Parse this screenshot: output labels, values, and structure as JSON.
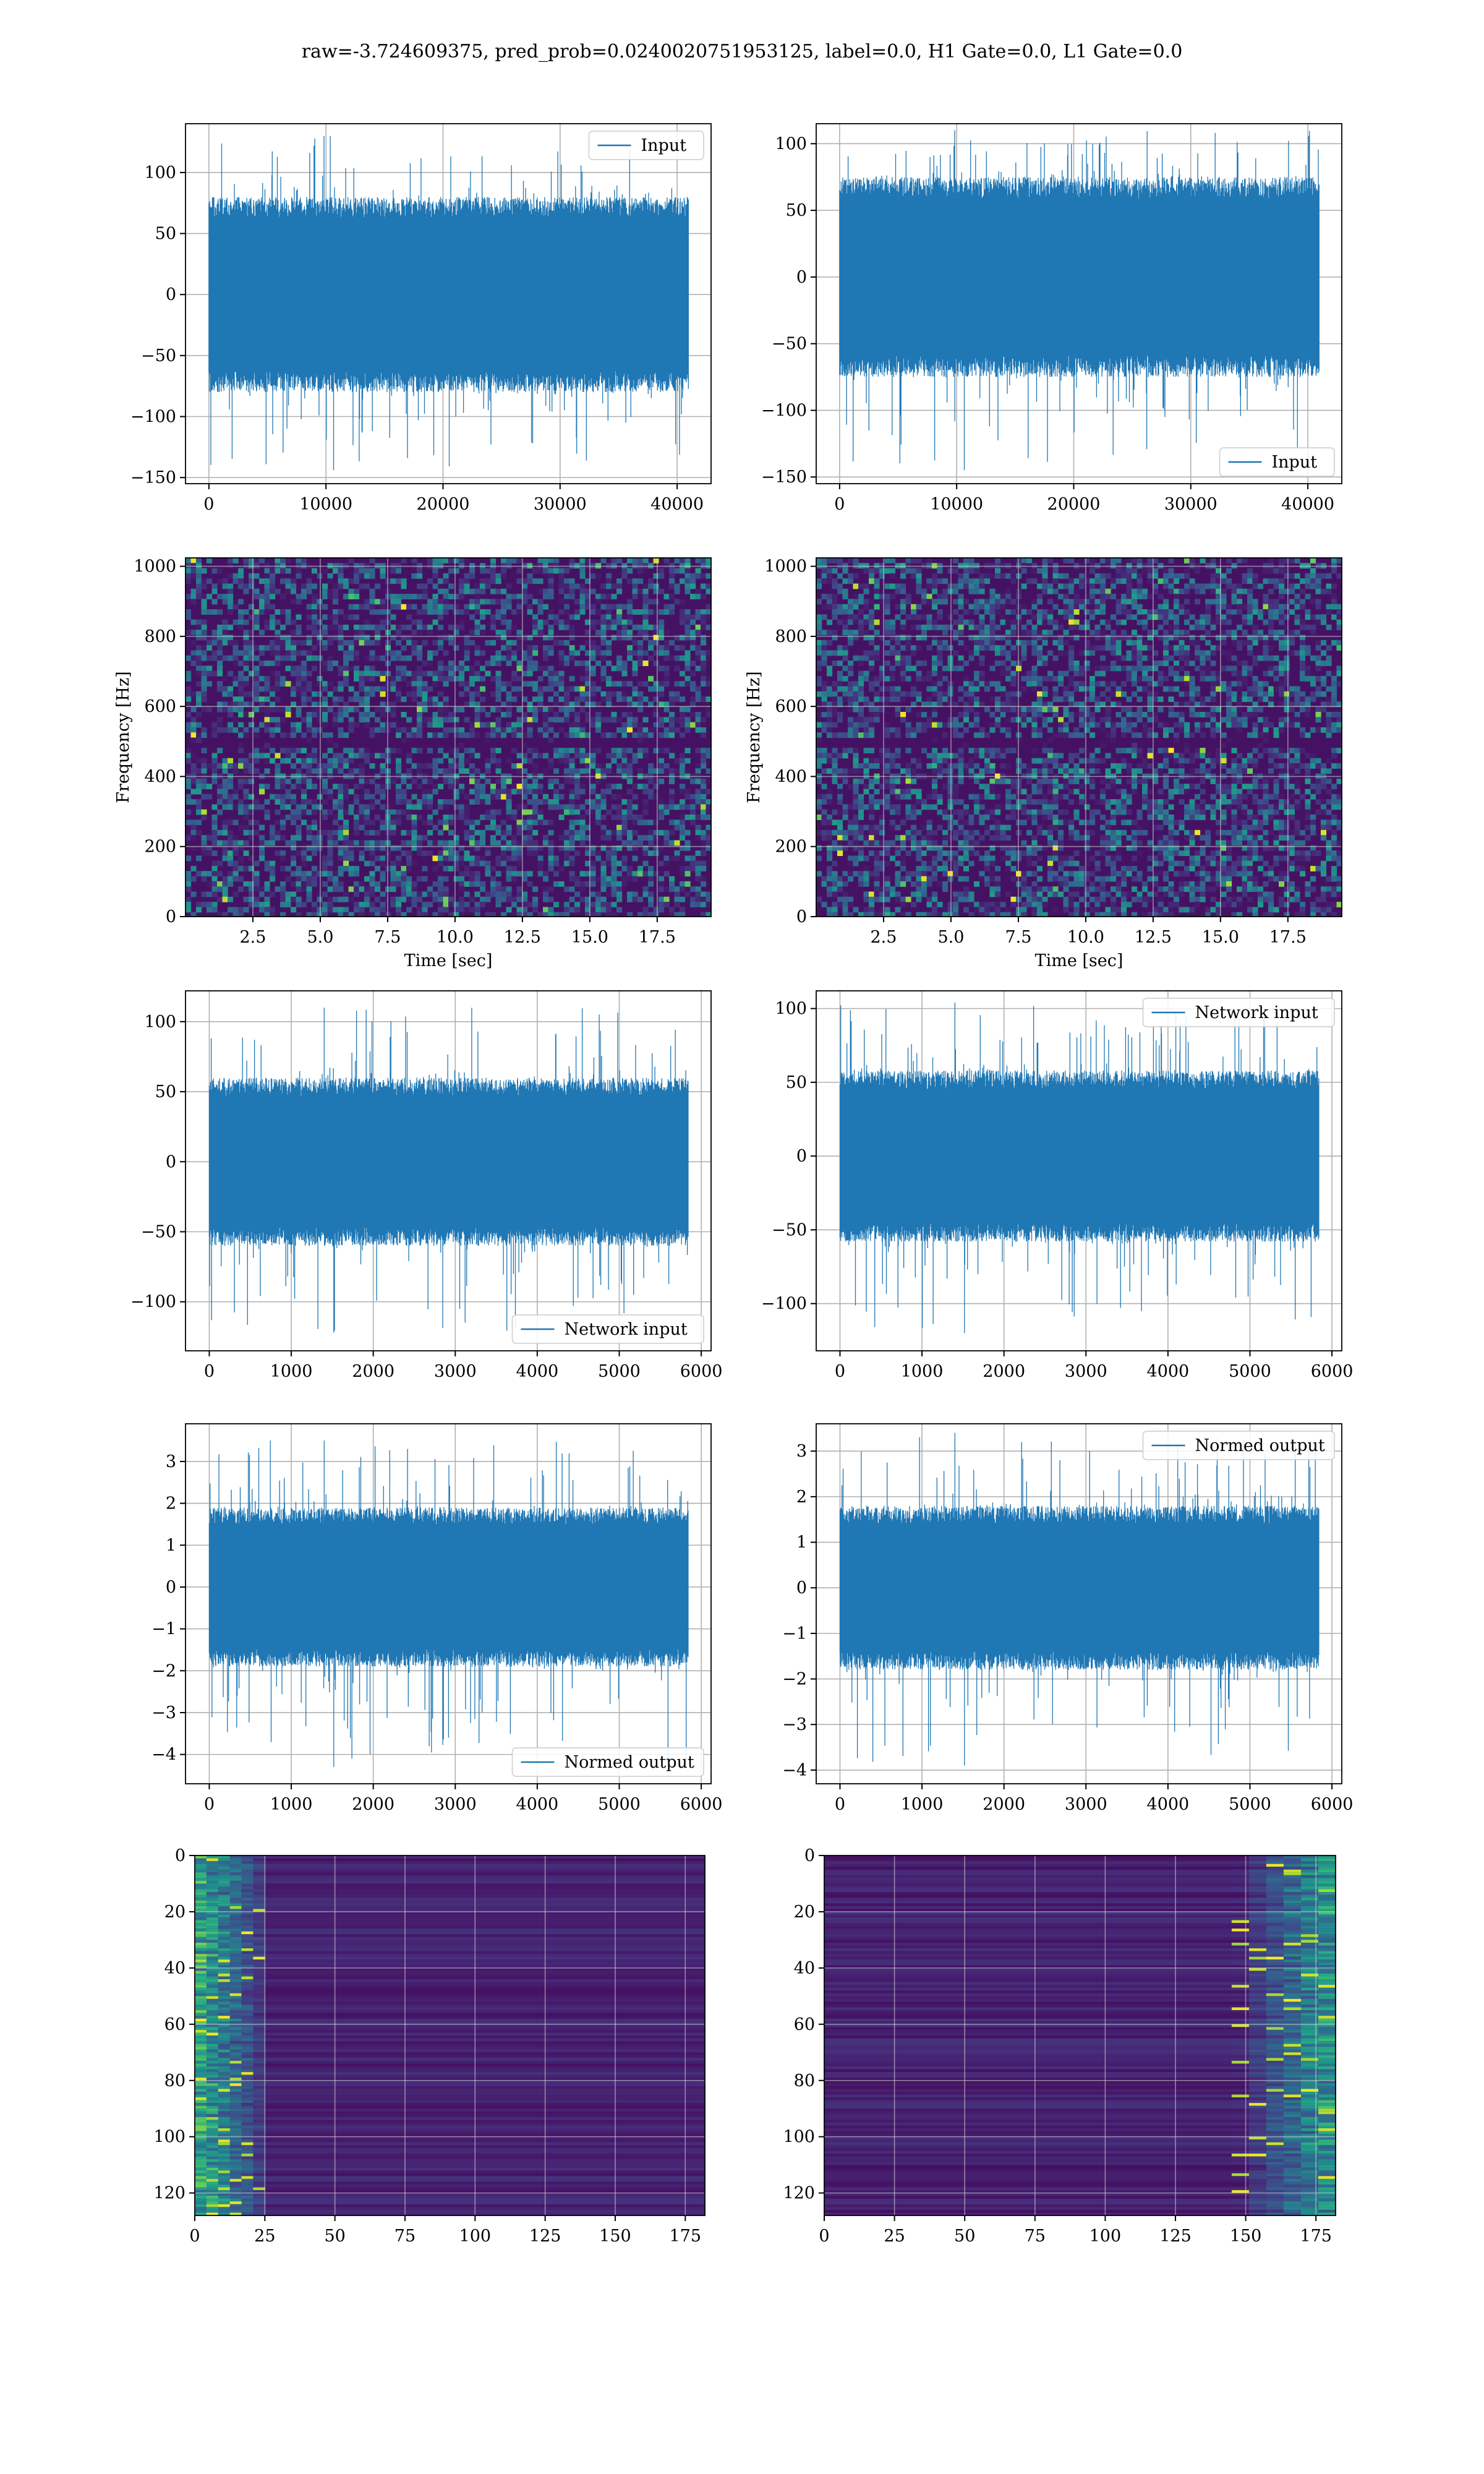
{
  "suptitle": "raw=-3.724609375, pred_prob=0.0240020751953125, label=0.0, H1 Gate=0.0, L1 Gate=0.0",
  "colors": {
    "line": "#1f77b4",
    "grid": "#b0b0b0"
  },
  "chart_data": [
    {
      "id": "ts-input-left",
      "type": "line",
      "legend": "Input",
      "legend_loc": "upper-right",
      "xlim": [
        -2000,
        42900
      ],
      "ylim": [
        -155,
        140
      ],
      "xticks": [
        0,
        10000,
        20000,
        30000,
        40000
      ],
      "xticklabels": [
        "0",
        "10000",
        "20000",
        "30000",
        "40000"
      ],
      "yticks": [
        -150,
        -100,
        -50,
        0,
        50,
        100
      ],
      "yticklabels": [
        "−150",
        "−100",
        "−50",
        "0",
        "50",
        "100"
      ],
      "n_samples": 40960,
      "x_range": [
        0,
        40960
      ],
      "envelope_lo": -80,
      "envelope_hi": 80,
      "min": -144,
      "max": 130
    },
    {
      "id": "ts-input-right",
      "type": "line",
      "legend": "Input",
      "legend_loc": "lower-right",
      "xlim": [
        -2000,
        42900
      ],
      "ylim": [
        -155,
        115
      ],
      "xticks": [
        0,
        10000,
        20000,
        30000,
        40000
      ],
      "xticklabels": [
        "0",
        "10000",
        "20000",
        "30000",
        "40000"
      ],
      "yticks": [
        -150,
        -100,
        -50,
        0,
        50,
        100
      ],
      "yticklabels": [
        "−150",
        "−100",
        "−50",
        "0",
        "50",
        "100"
      ],
      "n_samples": 40960,
      "x_range": [
        0,
        40960
      ],
      "envelope_lo": -75,
      "envelope_hi": 75,
      "min": -145,
      "max": 110
    },
    {
      "id": "spec-left",
      "type": "heatmap",
      "xlabel": "Time [sec]",
      "ylabel": "Frequency [Hz]",
      "xlim": [
        0,
        19.5
      ],
      "ylim": [
        0,
        1024
      ],
      "xticks": [
        2.5,
        5.0,
        7.5,
        10.0,
        12.5,
        15.0,
        17.5
      ],
      "xticklabels": [
        "2.5",
        "5.0",
        "7.5",
        "10.0",
        "12.5",
        "15.0",
        "17.5"
      ],
      "yticks": [
        0,
        200,
        400,
        600,
        800,
        1000
      ],
      "yticklabels": [
        "0",
        "200",
        "400",
        "600",
        "800",
        "1000"
      ],
      "colormap": "viridis",
      "dark_band_hz": [
        500,
        512
      ]
    },
    {
      "id": "spec-right",
      "type": "heatmap",
      "xlabel": "Time [sec]",
      "ylabel": "Frequency [Hz]",
      "xlim": [
        0,
        19.5
      ],
      "ylim": [
        0,
        1024
      ],
      "xticks": [
        2.5,
        5.0,
        7.5,
        10.0,
        12.5,
        15.0,
        17.5
      ],
      "xticklabels": [
        "2.5",
        "5.0",
        "7.5",
        "10.0",
        "12.5",
        "15.0",
        "17.5"
      ],
      "yticks": [
        0,
        200,
        400,
        600,
        800,
        1000
      ],
      "yticklabels": [
        "0",
        "200",
        "400",
        "600",
        "800",
        "1000"
      ],
      "colormap": "viridis",
      "dark_band_hz": [
        500,
        512
      ]
    },
    {
      "id": "ts-net-left",
      "type": "line",
      "legend": "Network input",
      "legend_loc": "lower-right",
      "xlim": [
        -290,
        6120
      ],
      "ylim": [
        -135,
        122
      ],
      "xticks": [
        0,
        1000,
        2000,
        3000,
        4000,
        5000,
        6000
      ],
      "xticklabels": [
        "0",
        "1000",
        "2000",
        "3000",
        "4000",
        "5000",
        "6000"
      ],
      "yticks": [
        -100,
        -50,
        0,
        50,
        100
      ],
      "yticklabels": [
        "−100",
        "−50",
        "0",
        "50",
        "100"
      ],
      "n_samples": 5840,
      "x_range": [
        0,
        5840
      ],
      "envelope_lo": -60,
      "envelope_hi": 60,
      "min": -122,
      "max": 110
    },
    {
      "id": "ts-net-right",
      "type": "line",
      "legend": "Network input",
      "legend_loc": "upper-right",
      "xlim": [
        -290,
        6120
      ],
      "ylim": [
        -132,
        112
      ],
      "xticks": [
        0,
        1000,
        2000,
        3000,
        4000,
        5000,
        6000
      ],
      "xticklabels": [
        "0",
        "1000",
        "2000",
        "3000",
        "4000",
        "5000",
        "6000"
      ],
      "yticks": [
        -100,
        -50,
        0,
        50,
        100
      ],
      "yticklabels": [
        "−100",
        "−50",
        "0",
        "50",
        "100"
      ],
      "n_samples": 5840,
      "x_range": [
        0,
        5840
      ],
      "envelope_lo": -58,
      "envelope_hi": 58,
      "min": -120,
      "max": 104
    },
    {
      "id": "ts-norm-left",
      "type": "line",
      "legend": "Normed output",
      "legend_loc": "lower-right",
      "xlim": [
        -290,
        6120
      ],
      "ylim": [
        -4.7,
        3.9
      ],
      "xticks": [
        0,
        1000,
        2000,
        3000,
        4000,
        5000,
        6000
      ],
      "xticklabels": [
        "0",
        "1000",
        "2000",
        "3000",
        "4000",
        "5000",
        "6000"
      ],
      "yticks": [
        -4,
        -3,
        -2,
        -1,
        0,
        1,
        2,
        3
      ],
      "yticklabels": [
        "−4",
        "−3",
        "−2",
        "−1",
        "0",
        "1",
        "2",
        "3"
      ],
      "n_samples": 5840,
      "x_range": [
        0,
        5840
      ],
      "envelope_lo": -1.9,
      "envelope_hi": 1.9,
      "min": -4.3,
      "max": 3.5
    },
    {
      "id": "ts-norm-right",
      "type": "line",
      "legend": "Normed output",
      "legend_loc": "upper-right",
      "xlim": [
        -290,
        6120
      ],
      "ylim": [
        -4.3,
        3.6
      ],
      "xticks": [
        0,
        1000,
        2000,
        3000,
        4000,
        5000,
        6000
      ],
      "xticklabels": [
        "0",
        "1000",
        "2000",
        "3000",
        "4000",
        "5000",
        "6000"
      ],
      "yticks": [
        -4,
        -3,
        -2,
        -1,
        0,
        1,
        2,
        3
      ],
      "yticklabels": [
        "−4",
        "−3",
        "−2",
        "−1",
        "0",
        "1",
        "2",
        "3"
      ],
      "n_samples": 5840,
      "x_range": [
        0,
        5840
      ],
      "envelope_lo": -1.8,
      "envelope_hi": 1.8,
      "min": -3.9,
      "max": 3.4
    },
    {
      "id": "feat-left",
      "type": "heatmap",
      "colormap": "viridis",
      "y_inverted": true,
      "xlim": [
        0,
        182
      ],
      "ylim": [
        128,
        0
      ],
      "xticks": [
        0,
        25,
        50,
        75,
        100,
        125,
        150,
        175
      ],
      "xticklabels": [
        "0",
        "25",
        "50",
        "75",
        "100",
        "125",
        "150",
        "175"
      ],
      "yticks": [
        0,
        20,
        40,
        60,
        80,
        100,
        120
      ],
      "yticklabels": [
        "0",
        "20",
        "40",
        "60",
        "80",
        "100",
        "120"
      ],
      "bright_region_cols": [
        0,
        25
      ]
    },
    {
      "id": "feat-right",
      "type": "heatmap",
      "colormap": "viridis",
      "y_inverted": true,
      "xlim": [
        0,
        182
      ],
      "ylim": [
        128,
        0
      ],
      "xticks": [
        0,
        25,
        50,
        75,
        100,
        125,
        150,
        175
      ],
      "xticklabels": [
        "0",
        "25",
        "50",
        "75",
        "100",
        "125",
        "150",
        "175"
      ],
      "yticks": [
        0,
        20,
        40,
        60,
        80,
        100,
        120
      ],
      "yticklabels": [
        "0",
        "20",
        "40",
        "60",
        "80",
        "100",
        "120"
      ],
      "bright_region_cols": [
        145,
        182
      ]
    }
  ]
}
